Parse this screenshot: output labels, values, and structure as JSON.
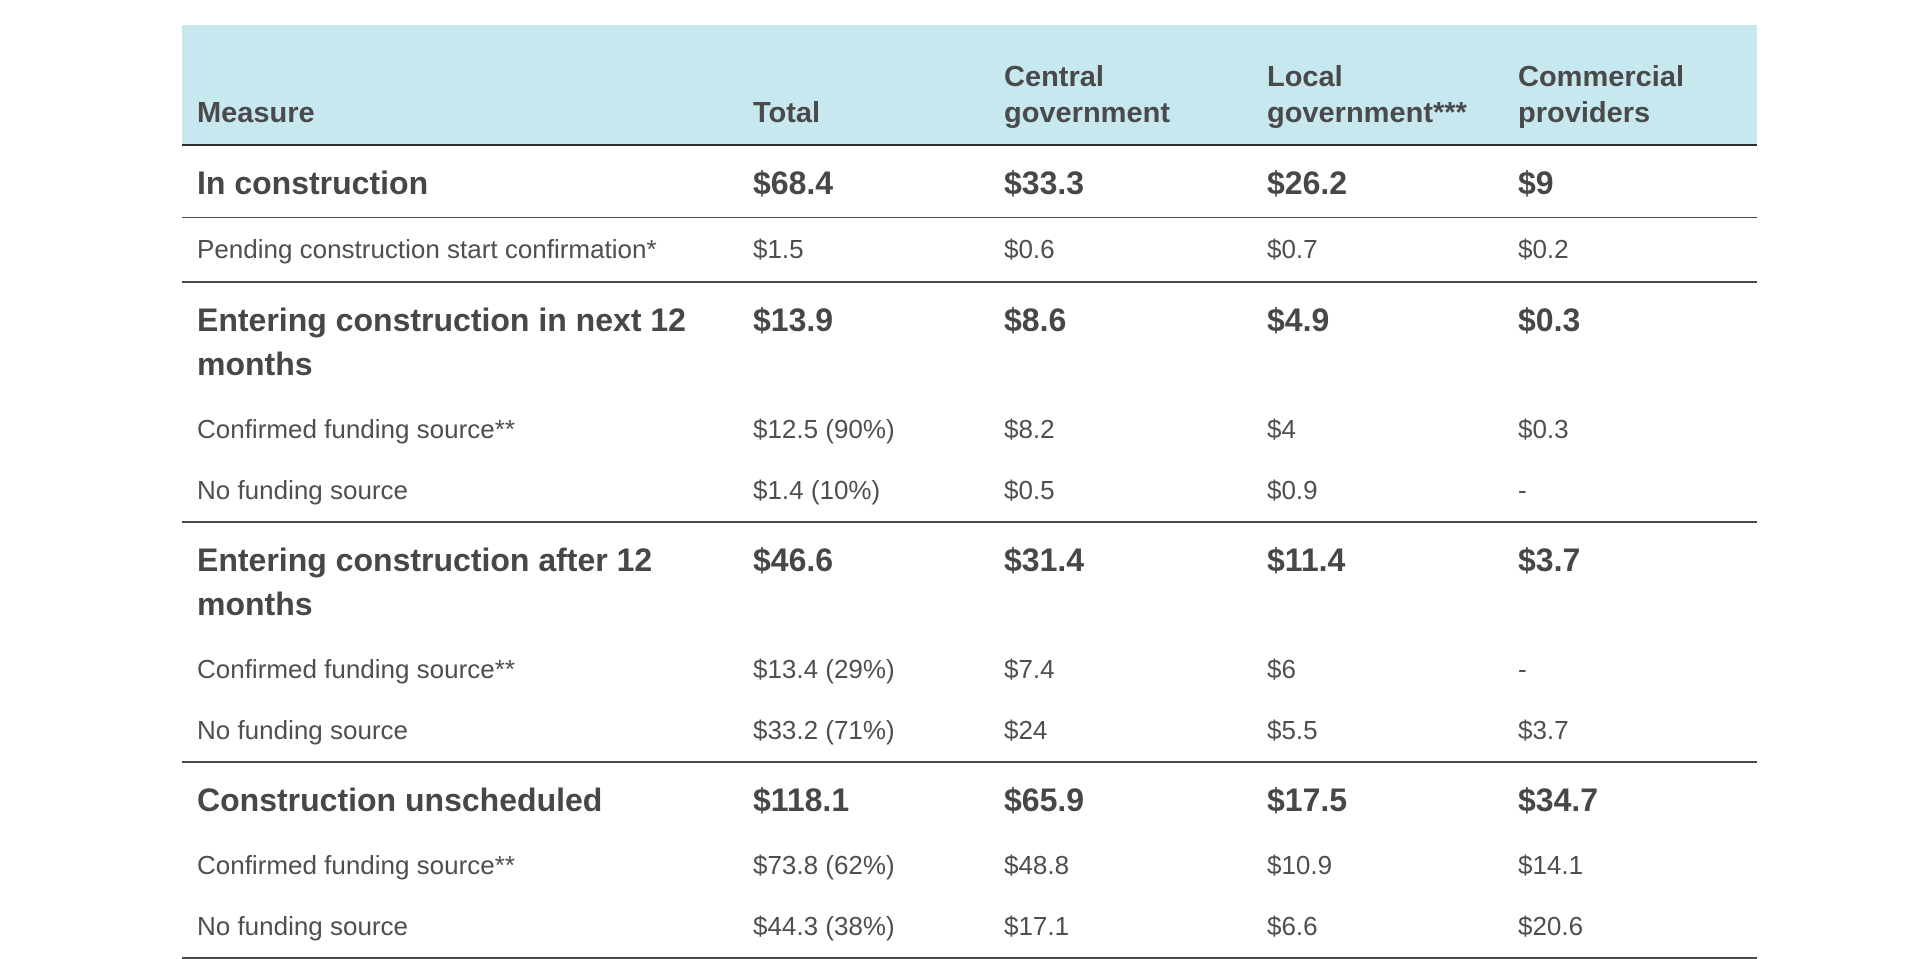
{
  "table": {
    "headers": [
      "Measure",
      "Total",
      "Central government",
      "Local government***",
      "Commercial providers"
    ],
    "header_lines": [
      [
        "",
        "Measure"
      ],
      [
        "",
        "Total"
      ],
      [
        "Central",
        "government"
      ],
      [
        "Local",
        "government***"
      ],
      [
        "Commercial",
        "providers"
      ]
    ],
    "rows": [
      {
        "kind": "section",
        "cells": [
          "In construction",
          "$68.4",
          "$33.3",
          "$26.2",
          "$9"
        ]
      },
      {
        "kind": "sub",
        "cells": [
          "Pending construction start confirmation*",
          "$1.5",
          "$0.6",
          "$0.7",
          "$0.2"
        ]
      },
      {
        "kind": "section",
        "cells": [
          "Entering construction in next 12 months",
          "$13.9",
          "$8.6",
          "$4.9",
          "$0.3"
        ]
      },
      {
        "kind": "sub",
        "cells": [
          "Confirmed funding source**",
          "$12.5 (90%)",
          "$8.2",
          "$4",
          "$0.3"
        ]
      },
      {
        "kind": "sub",
        "cells": [
          "No funding source",
          "$1.4 (10%)",
          "$0.5",
          "$0.9",
          "-"
        ]
      },
      {
        "kind": "section",
        "cells": [
          "Entering construction after 12 months",
          "$46.6",
          "$31.4",
          "$11.4",
          "$3.7"
        ]
      },
      {
        "kind": "sub",
        "cells": [
          "Confirmed funding source**",
          "$13.4 (29%)",
          "$7.4",
          "$6",
          "-"
        ]
      },
      {
        "kind": "sub",
        "cells": [
          "No funding source",
          "$33.2 (71%)",
          "$24",
          "$5.5",
          "$3.7"
        ]
      },
      {
        "kind": "section",
        "cells": [
          "Construction unscheduled",
          "$118.1",
          "$65.9",
          "$17.5",
          "$34.7"
        ]
      },
      {
        "kind": "sub",
        "cells": [
          "Confirmed funding source**",
          "$73.8 (62%)",
          "$48.8",
          "$10.9",
          "$14.1"
        ]
      },
      {
        "kind": "sub",
        "cells": [
          "No funding source",
          "$44.3 (38%)",
          "$17.1",
          "$6.6",
          "$20.6"
        ]
      }
    ]
  }
}
